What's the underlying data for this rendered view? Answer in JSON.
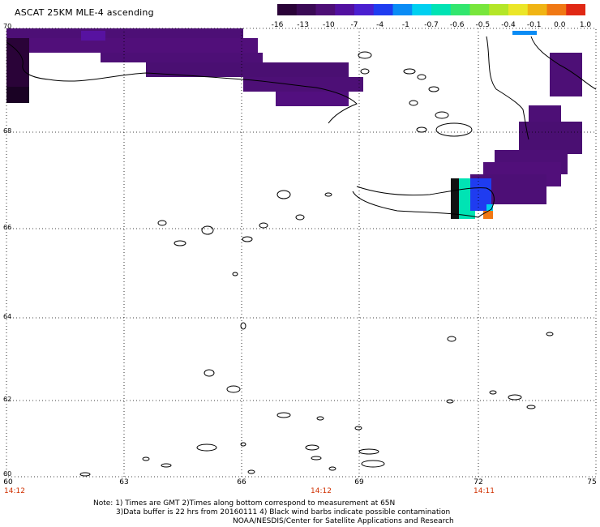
{
  "title": "ASCAT 25KM MLE-4 ascending",
  "colorbar": {
    "colors": [
      "#2a0338",
      "#3a0a55",
      "#4d0f76",
      "#5210a0",
      "#4a1fd0",
      "#1f3cf0",
      "#0a8cf5",
      "#00d0f0",
      "#00e3b4",
      "#32e66e",
      "#78e63c",
      "#b4e628",
      "#ebe628",
      "#f0b414",
      "#f07814",
      "#e02814"
    ],
    "labels": [
      "-16",
      "-13",
      "-10",
      "-7",
      "-4",
      "-1",
      "-0.7",
      "-0.6",
      "-0.5",
      "-0.4",
      "-0.1",
      "0.0",
      "1.0"
    ]
  },
  "axes": {
    "y_labels": [
      "70",
      "68",
      "66",
      "64",
      "62",
      "60"
    ],
    "x_labels": [
      "60",
      "63",
      "66",
      "69",
      "72",
      "75"
    ],
    "time_labels": [
      "14:12",
      "14:12",
      "14:11"
    ]
  },
  "notes": [
    "Note: 1) Times are GMT 2)Times along bottom correspond to measurement at 65N",
    "3)Data buffer is 22 hrs from 20160111 4) Black wind barbs indicate possible contamination",
    "NOAA/NESDIS/Center for Satellite Applications and Research"
  ]
}
